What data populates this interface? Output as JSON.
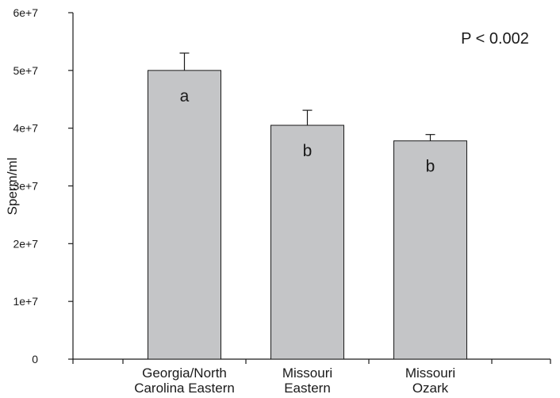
{
  "chart_data": {
    "type": "bar",
    "categories": [
      [
        "Georgia/North",
        "Carolina Eastern"
      ],
      [
        "Missouri",
        "Eastern"
      ],
      [
        "Missouri",
        "Ozark"
      ]
    ],
    "values": [
      50000000,
      40500000,
      37800000
    ],
    "errors": [
      3000000,
      2600000,
      1100000
    ],
    "letters": [
      "a",
      "b",
      "b"
    ],
    "ylabel": "Sperm/ml",
    "xlabel": "",
    "ylim": [
      0,
      60000000
    ],
    "yticks": [
      0,
      10000000,
      20000000,
      30000000,
      40000000,
      50000000,
      60000000
    ],
    "ytick_labels": [
      "0",
      "1e+7",
      "2e+7",
      "3e+7",
      "4e+7",
      "5e+7",
      "6e+7"
    ],
    "annotation": "P < 0.002",
    "grid": false,
    "bar_color": "#c4c5c7"
  }
}
